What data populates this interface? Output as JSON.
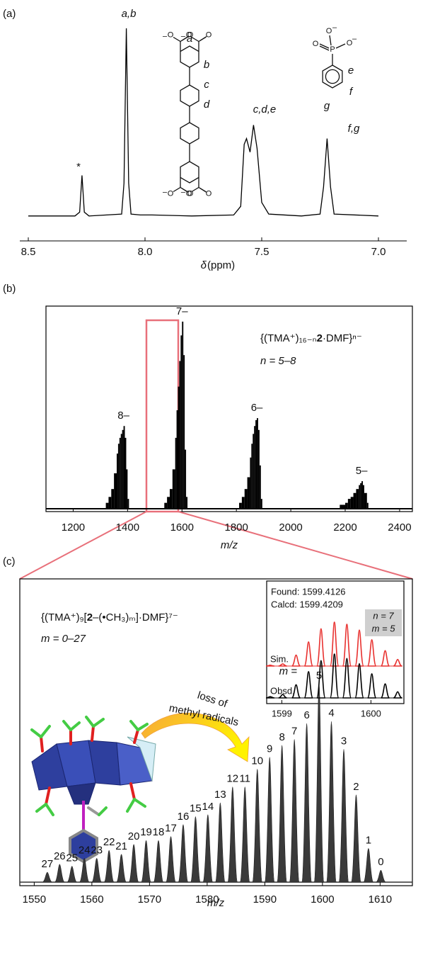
{
  "panel_labels": [
    "(a)",
    "(b)",
    "(c)"
  ],
  "structure": {
    "atom_O": "O",
    "atom_P": "P",
    "charge": "–",
    "labels": [
      "a",
      "b",
      "c",
      "d",
      "e",
      "f",
      "g"
    ]
  },
  "chart_data": [
    {
      "type": "line",
      "color": "#000",
      "x": [
        8.5,
        8.3,
        8.28,
        8.27,
        8.26,
        8.24,
        8.1,
        8.09,
        8.08,
        8.07,
        8.06,
        8.02,
        7.97,
        7.8,
        7.62,
        7.59,
        7.575,
        7.565,
        7.55,
        7.535,
        7.52,
        7.5,
        7.47,
        7.33,
        7.25,
        7.235,
        7.22,
        7.205,
        7.19,
        7.0
      ],
      "values": [
        3,
        3,
        5,
        24,
        5,
        3,
        4,
        20,
        100,
        20,
        4,
        3.5,
        3.5,
        3,
        3.5,
        8,
        40,
        43,
        36,
        50,
        38,
        10,
        4,
        3,
        4,
        18,
        43,
        18,
        4,
        3
      ],
      "xlim": [
        8.5,
        7.0
      ],
      "ylim": [
        0,
        100
      ],
      "xticks": [
        {
          "value": 8.5,
          "label": "8.5"
        },
        {
          "value": 8,
          "label": "8.0"
        },
        {
          "value": 7.5,
          "label": "7.5"
        },
        {
          "value": 7,
          "label": "7.0"
        }
      ],
      "x_label_symbol": "δ",
      "x_label": "(ppm)",
      "peak_labels": [
        "*",
        "a,b",
        "c,d,e",
        "f,g"
      ]
    },
    {
      "type": "bar",
      "color": "#000",
      "series": [
        {
          "name": "8–",
          "x": [
            1320,
            1330,
            1340,
            1350,
            1360,
            1365,
            1370,
            1375,
            1380,
            1385,
            1390,
            1395,
            1400
          ],
          "values": [
            3,
            6,
            10,
            18,
            28,
            33,
            36,
            38,
            40,
            42,
            36,
            20,
            5
          ]
        },
        {
          "name": "7–",
          "x": [
            1535,
            1545,
            1555,
            1565,
            1575,
            1580,
            1585,
            1590,
            1595,
            1600,
            1605,
            1610,
            1615
          ],
          "values": [
            3,
            6,
            10,
            20,
            36,
            50,
            62,
            75,
            88,
            95,
            78,
            30,
            6
          ]
        },
        {
          "name": "6–",
          "x": [
            1810,
            1820,
            1830,
            1840,
            1850,
            1855,
            1860,
            1865,
            1870,
            1875,
            1880,
            1885,
            1890
          ],
          "values": [
            3,
            6,
            10,
            16,
            26,
            33,
            38,
            42,
            45,
            46,
            40,
            22,
            5
          ]
        },
        {
          "name": "5–",
          "x": [
            2180,
            2200,
            2210,
            2220,
            2230,
            2240,
            2250,
            2255,
            2260,
            2265,
            2270,
            2280
          ],
          "values": [
            2,
            3,
            5,
            6,
            8,
            10,
            12,
            13,
            14,
            12,
            8,
            3
          ]
        }
      ],
      "xlim": [
        1100,
        2447
      ],
      "ylim": [
        0,
        100
      ],
      "xticks": [
        1200,
        1400,
        1600,
        1800,
        2000,
        2200,
        2400
      ],
      "x_label": "m/z",
      "formula": [
        "{(TMA⁺)₁₆₋ₙ",
        "2",
        "·DMF}ⁿ⁻"
      ],
      "range_label": "n = 5–8"
    },
    {
      "type": "bar",
      "color": "#3a3a3a",
      "x": [
        1610.13,
        1607.98,
        1605.84,
        1603.7,
        1601.55,
        1599.41,
        1597.27,
        1595.13,
        1592.98,
        1590.84,
        1588.7,
        1586.55,
        1584.41,
        1582.27,
        1580.12,
        1577.98,
        1575.84,
        1573.7,
        1571.55,
        1569.41,
        1567.27,
        1565.12,
        1562.98,
        1560.84,
        1558.7,
        1556.55,
        1554.41,
        1552.27
      ],
      "values": [
        6,
        17,
        44,
        67,
        81,
        100,
        80,
        72,
        69,
        63,
        57,
        48,
        48,
        40,
        34,
        33,
        29,
        23,
        21,
        21,
        19,
        14,
        16,
        12,
        12,
        8,
        9,
        5
      ],
      "m": [
        0,
        1,
        2,
        3,
        4,
        5,
        6,
        7,
        8,
        9,
        10,
        11,
        12,
        13,
        14,
        15,
        16,
        17,
        18,
        19,
        20,
        21,
        22,
        23,
        24,
        25,
        26,
        27
      ],
      "xlim": [
        1547.5,
        1615.6
      ],
      "ylim": [
        0,
        100
      ],
      "xticks": [
        1550,
        1560,
        1570,
        1580,
        1590,
        1600,
        1610
      ],
      "x_label": "m/z",
      "formula": [
        "{(TMA⁺)₉[",
        "2",
        "–(•CH₃)ₘ]·DMF}⁷⁻"
      ],
      "range_label": "m = 0–27",
      "arrow_label": [
        "loss of",
        "methyl radicals"
      ],
      "m_prefix": "m ="
    },
    {
      "type": "bar",
      "series": [
        {
          "name": "Sim.",
          "color": "#e8312f",
          "x": [
            1598.87,
            1599.01,
            1599.16,
            1599.3,
            1599.44,
            1599.59,
            1599.73,
            1599.87,
            1600.01,
            1600.16,
            1600.3
          ],
          "values": [
            2,
            5,
            25,
            55,
            85,
            100,
            95,
            82,
            60,
            35,
            15
          ]
        },
        {
          "name": "Obsd.",
          "color": "#000",
          "x": [
            1598.87,
            1599.01,
            1599.16,
            1599.3,
            1599.44,
            1599.59,
            1599.73,
            1599.87,
            1600.01,
            1600.16,
            1600.3
          ],
          "values": [
            3,
            8,
            30,
            60,
            85,
            100,
            90,
            78,
            55,
            32,
            14
          ]
        }
      ],
      "xlim": [
        1598.83,
        1600.37
      ],
      "ylim": [
        0,
        100
      ],
      "xticks": [
        1599,
        1600
      ],
      "found": "Found:  1599.4126",
      "calcd": "Calcd:  1599.4209",
      "n_label": "n = 7",
      "m_label": "m = 5"
    }
  ]
}
